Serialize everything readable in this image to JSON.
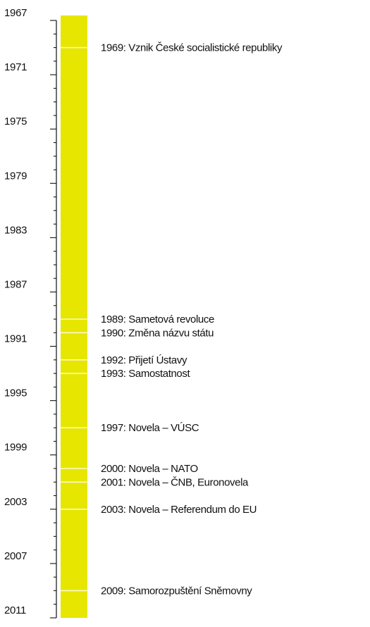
{
  "timeline": {
    "start_year": 1967,
    "end_year": 2011,
    "bar_color": "#e6e600",
    "year_labels": [
      "1967",
      "1971",
      "1975",
      "1979",
      "1983",
      "1987",
      "1991",
      "1995",
      "1999",
      "2003",
      "2007",
      "2011"
    ],
    "events": [
      {
        "year": 1969,
        "label": "1969: Vznik České socialistické republiky"
      },
      {
        "year": 1989,
        "label": "1989: Sametová revoluce"
      },
      {
        "year": 1990,
        "label": "1990: Změna názvu státu"
      },
      {
        "year": 1992,
        "label": "1992: Přijetí Ústavy"
      },
      {
        "year": 1993,
        "label": "1993: Samostatnost"
      },
      {
        "year": 1997,
        "label": "1997: Novela – VÚSC"
      },
      {
        "year": 2000,
        "label": "2000: Novela – NATO"
      },
      {
        "year": 2001,
        "label": "2001: Novela – ČNB, Euronovela"
      },
      {
        "year": 2003,
        "label": "2003: Novela – Referendum do EU"
      },
      {
        "year": 2009,
        "label": "2009: Samorozpuštění Sněmovny"
      }
    ]
  }
}
